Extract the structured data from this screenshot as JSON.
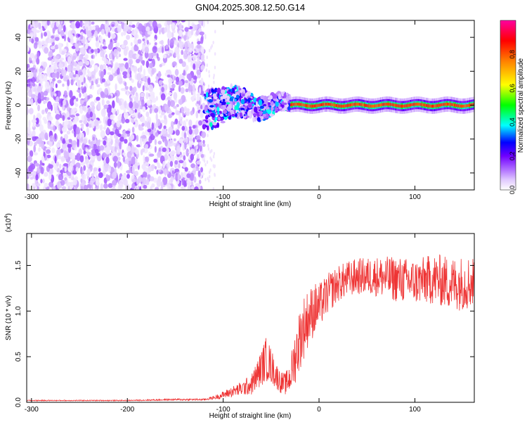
{
  "title": "GN04.2025.308.12.50.G14",
  "chart_data": [
    {
      "type": "heatmap",
      "title": "GN04.2025.308.12.50.G14",
      "xlabel": "Height of straight line (km)",
      "ylabel": "Frequency (Hz)",
      "xlim": [
        -305,
        162
      ],
      "ylim": [
        -50,
        50
      ],
      "x_ticks": [
        "-300",
        "-200",
        "-100",
        "0",
        "100"
      ],
      "x_tick_values": [
        -300,
        -200,
        -100,
        0,
        100
      ],
      "y_ticks": [
        "-40",
        "-20",
        "0",
        "20",
        "40"
      ],
      "y_tick_values": [
        -40,
        -20,
        0,
        20,
        40
      ],
      "colorbar": {
        "label": "Normalized spectral amplitude",
        "range": [
          0,
          1
        ],
        "ticks": [
          "0.0",
          "0.2",
          "0.4",
          "0.6",
          "0.8"
        ],
        "tick_values": [
          0,
          0.2,
          0.4,
          0.6,
          0.8
        ],
        "colormap": [
          "#ffffff",
          "#e0c8ff",
          "#b070ff",
          "#7000ff",
          "#0000ff",
          "#00ffff",
          "#00ff00",
          "#ffff00",
          "#ff8000",
          "#ff0000",
          "#ff00a0"
        ]
      },
      "regions": [
        {
          "x_range": [
            -305,
            -120
          ],
          "freq_range": [
            -50,
            50
          ],
          "amplitude": 0.12,
          "pattern": "broadband noise"
        },
        {
          "x_range": [
            -120,
            -30
          ],
          "freq_range": [
            -12,
            15
          ],
          "amplitude": 0.3,
          "pattern": "emerging signal near 0 Hz"
        },
        {
          "x_range": [
            -30,
            162
          ],
          "freq_range": [
            -2,
            2
          ],
          "amplitude": 0.95,
          "pattern": "narrow carrier at 0 Hz"
        }
      ]
    },
    {
      "type": "line",
      "xlabel": "Height of straight line (km)",
      "ylabel": "SNR (10 * v/v)",
      "y_scale_label": "(x10",
      "y_scale_exp": "4",
      "xlim": [
        -305,
        162
      ],
      "ylim": [
        0,
        1.85
      ],
      "x_ticks": [
        "-300",
        "-200",
        "-100",
        "0",
        "100"
      ],
      "x_tick_values": [
        -300,
        -200,
        -100,
        0,
        100
      ],
      "y_ticks": [
        "0.0",
        "0.5",
        "1.0",
        "1.5"
      ],
      "y_tick_values": [
        0,
        0.5,
        1.0,
        1.5
      ],
      "series": [
        {
          "color": "#ee3333",
          "x": [
            -305,
            -250,
            -200,
            -150,
            -120,
            -110,
            -100,
            -90,
            -80,
            -70,
            -60,
            -55,
            -50,
            -45,
            -40,
            -35,
            -30,
            -25,
            -20,
            -15,
            -10,
            -5,
            0,
            10,
            20,
            30,
            40,
            60,
            80,
            100,
            120,
            140,
            162
          ],
          "y": [
            0.02,
            0.02,
            0.02,
            0.03,
            0.03,
            0.05,
            0.08,
            0.12,
            0.15,
            0.2,
            0.38,
            0.48,
            0.4,
            0.3,
            0.22,
            0.2,
            0.28,
            0.5,
            0.7,
            0.85,
            0.95,
            1.02,
            1.05,
            1.2,
            1.3,
            1.35,
            1.38,
            1.38,
            1.35,
            1.32,
            1.35,
            1.3,
            1.32
          ],
          "noise": [
            0.005,
            0.005,
            0.005,
            0.01,
            0.01,
            0.02,
            0.04,
            0.06,
            0.08,
            0.12,
            0.2,
            0.25,
            0.2,
            0.15,
            0.12,
            0.12,
            0.18,
            0.3,
            0.35,
            0.35,
            0.3,
            0.3,
            0.25,
            0.22,
            0.2,
            0.2,
            0.2,
            0.22,
            0.25,
            0.25,
            0.28,
            0.3,
            0.3
          ]
        }
      ]
    }
  ]
}
